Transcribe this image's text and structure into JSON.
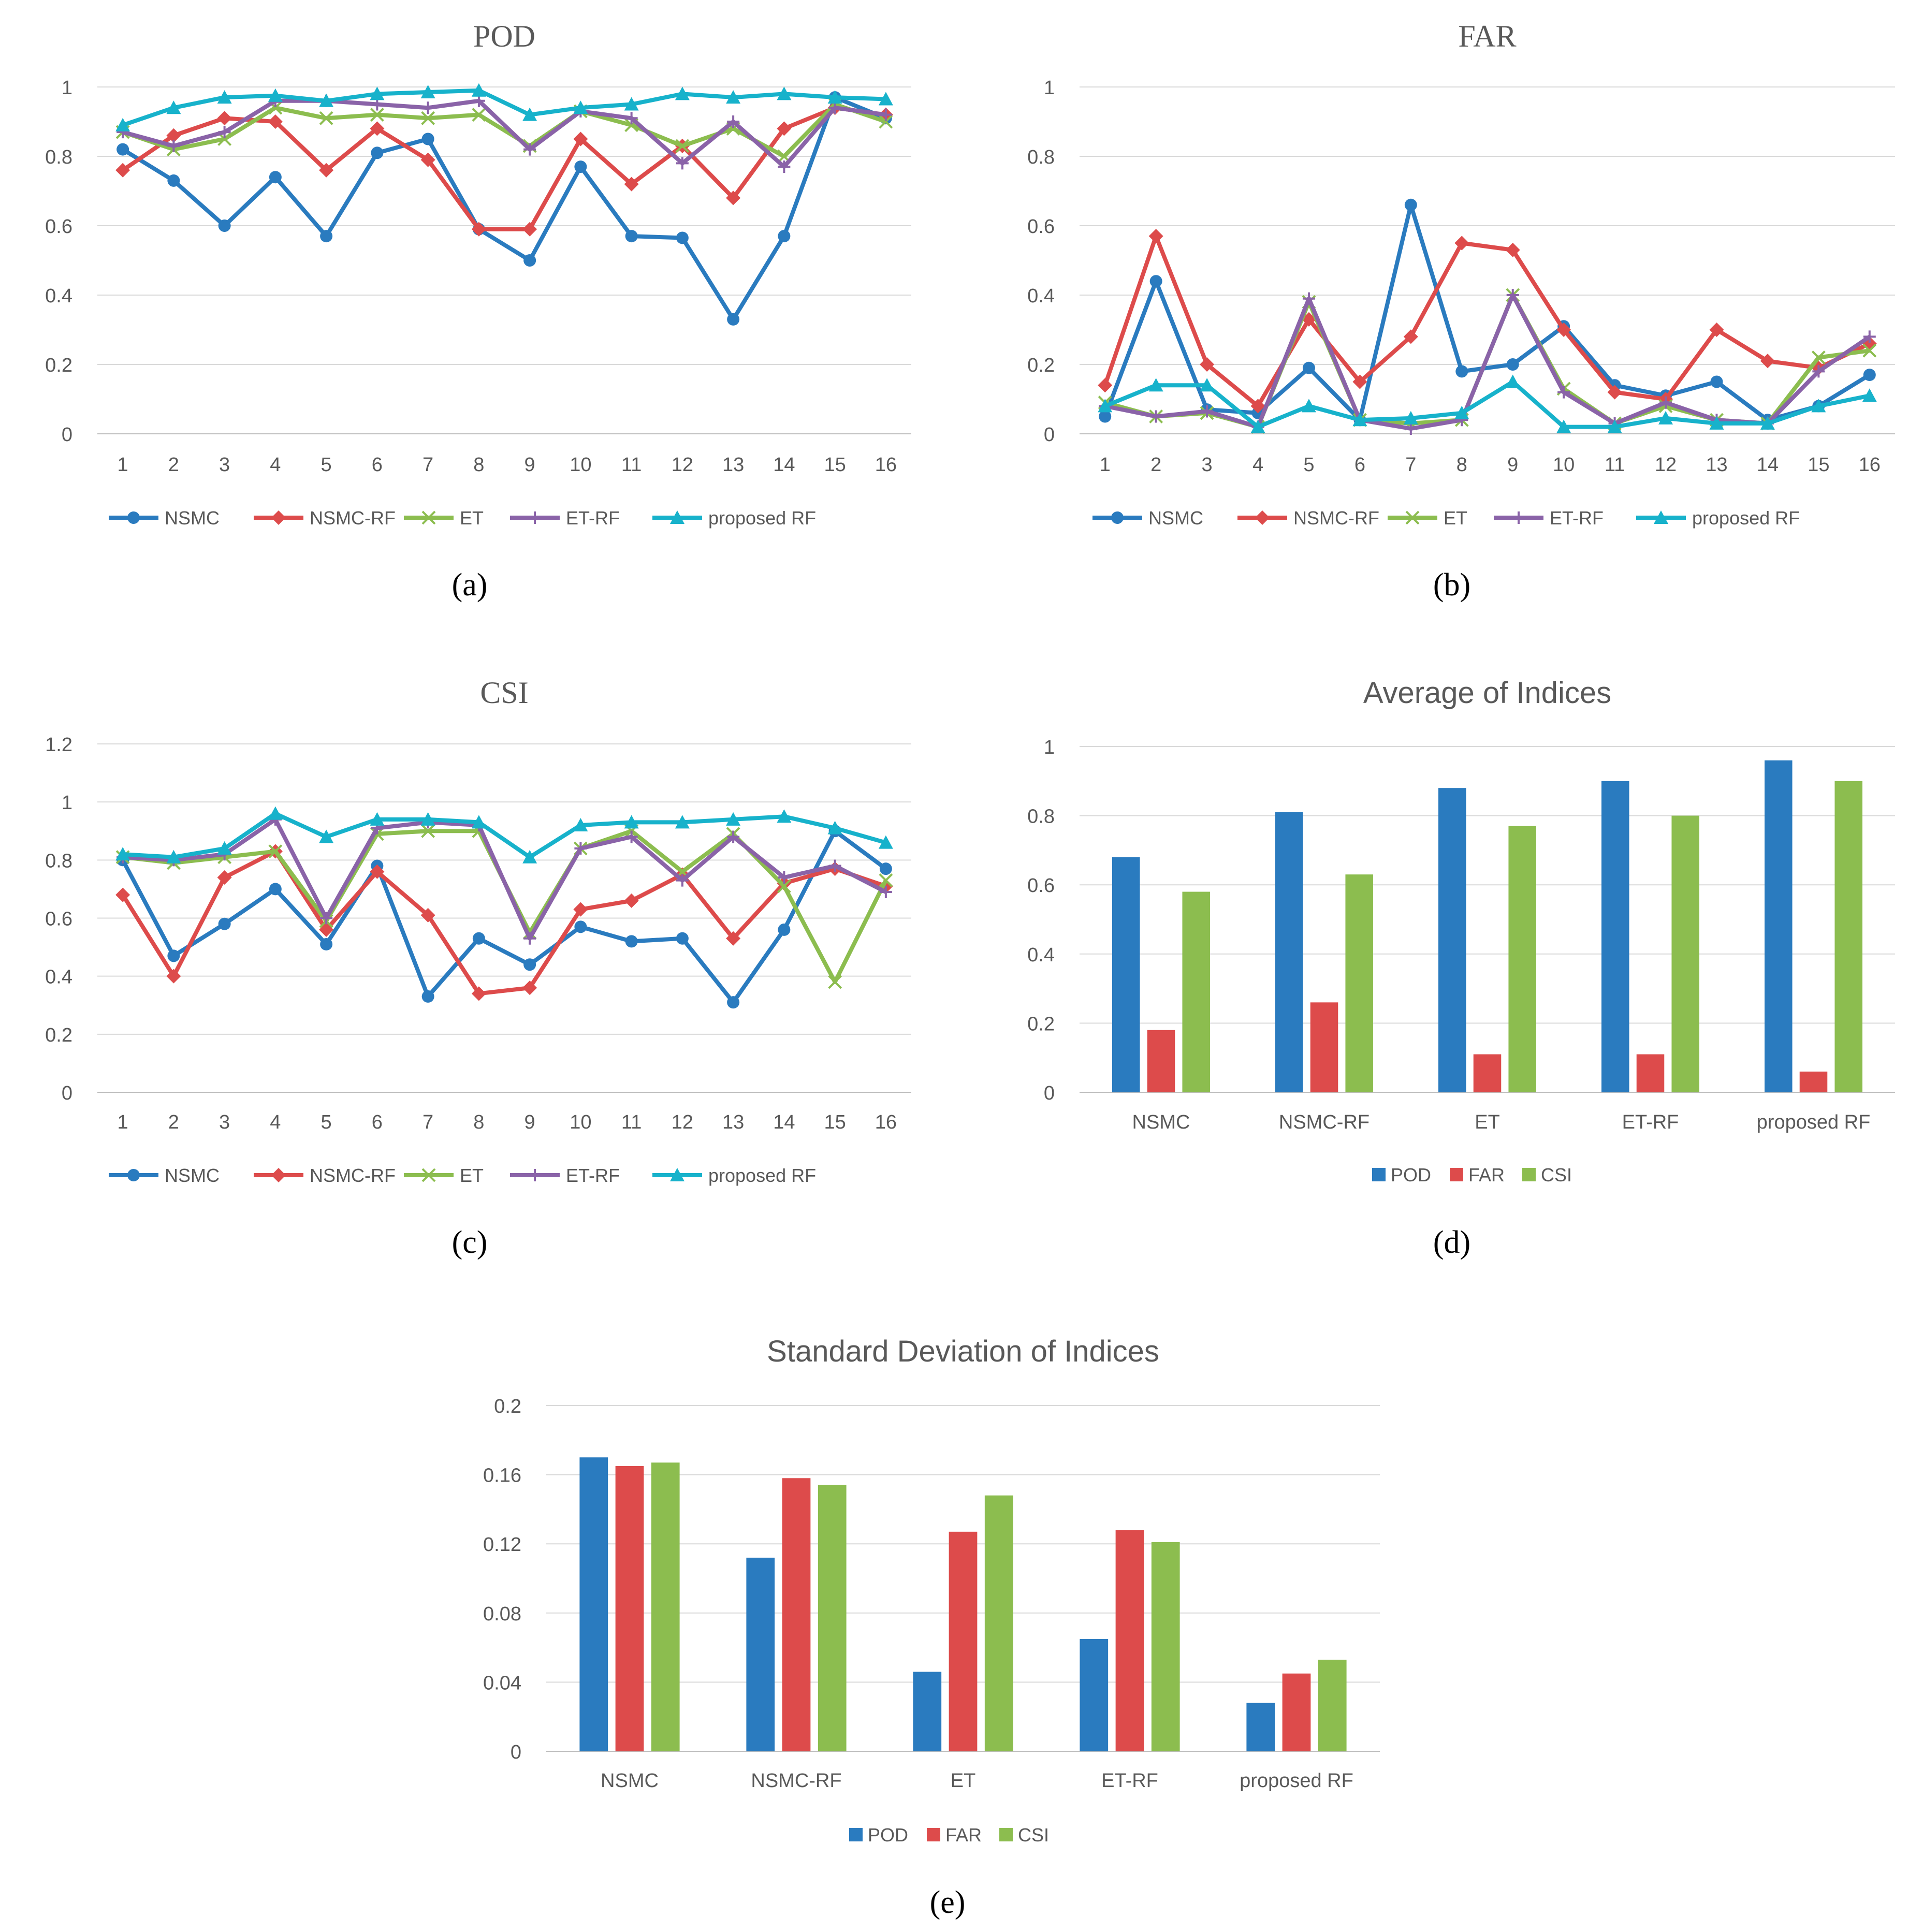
{
  "legend_line": [
    "NSMC",
    "NSMC-RF",
    "ET",
    "ET-RF",
    "proposed RF"
  ],
  "legend_bar": [
    "POD",
    "FAR",
    "CSI"
  ],
  "colors": {
    "NSMC": "#2a7bbf",
    "NSMC-RF": "#dd4b4b",
    "ET": "#8cbd4f",
    "ET-RF": "#8a63a8",
    "proposed RF": "#17b2cb",
    "POD": "#2a7bbf",
    "FAR": "#dd4b4b",
    "CSI": "#8cbd4f",
    "grid": "#d9d9d9",
    "axis_text": "#595959",
    "title_text": "#595959"
  },
  "chart_data": [
    {
      "id": "a",
      "panel_label": "(a)",
      "type": "line",
      "title": "POD",
      "categories": [
        "1",
        "2",
        "3",
        "4",
        "5",
        "6",
        "7",
        "8",
        "9",
        "10",
        "11",
        "12",
        "13",
        "14",
        "15",
        "16"
      ],
      "yticks": [
        "0",
        "0.2",
        "0.4",
        "0.6",
        "0.8",
        "1"
      ],
      "ylim": [
        0,
        1
      ],
      "series": [
        {
          "name": "NSMC",
          "values": [
            0.82,
            0.73,
            0.6,
            0.74,
            0.57,
            0.81,
            0.85,
            0.59,
            0.5,
            0.77,
            0.57,
            0.565,
            0.33,
            0.57,
            0.97,
            0.91
          ]
        },
        {
          "name": "NSMC-RF",
          "values": [
            0.76,
            0.86,
            0.91,
            0.9,
            0.76,
            0.88,
            0.79,
            0.59,
            0.59,
            0.85,
            0.72,
            0.83,
            0.68,
            0.88,
            0.94,
            0.92
          ]
        },
        {
          "name": "ET",
          "values": [
            0.87,
            0.82,
            0.85,
            0.94,
            0.91,
            0.92,
            0.91,
            0.92,
            0.83,
            0.93,
            0.89,
            0.83,
            0.88,
            0.8,
            0.95,
            0.9
          ]
        },
        {
          "name": "ET-RF",
          "values": [
            0.87,
            0.83,
            0.87,
            0.96,
            0.96,
            0.95,
            0.94,
            0.96,
            0.82,
            0.93,
            0.91,
            0.78,
            0.9,
            0.77,
            0.94,
            0.92
          ]
        },
        {
          "name": "proposed RF",
          "values": [
            0.89,
            0.94,
            0.97,
            0.975,
            0.96,
            0.98,
            0.985,
            0.99,
            0.92,
            0.94,
            0.95,
            0.98,
            0.97,
            0.98,
            0.97,
            0.965
          ]
        }
      ]
    },
    {
      "id": "b",
      "panel_label": "(b)",
      "type": "line",
      "title": "FAR",
      "categories": [
        "1",
        "2",
        "3",
        "4",
        "5",
        "6",
        "7",
        "8",
        "9",
        "10",
        "11",
        "12",
        "13",
        "14",
        "15",
        "16"
      ],
      "yticks": [
        "0",
        "0.2",
        "0.4",
        "0.6",
        "0.8",
        "1"
      ],
      "ylim": [
        0,
        1
      ],
      "series": [
        {
          "name": "NSMC",
          "values": [
            0.05,
            0.44,
            0.07,
            0.06,
            0.19,
            0.04,
            0.66,
            0.18,
            0.2,
            0.31,
            0.14,
            0.11,
            0.15,
            0.04,
            0.08,
            0.17
          ]
        },
        {
          "name": "NSMC-RF",
          "values": [
            0.14,
            0.57,
            0.2,
            0.08,
            0.33,
            0.15,
            0.28,
            0.55,
            0.53,
            0.3,
            0.12,
            0.1,
            0.3,
            0.21,
            0.19,
            0.26
          ]
        },
        {
          "name": "ET",
          "values": [
            0.09,
            0.05,
            0.06,
            0.02,
            0.38,
            0.04,
            0.03,
            0.04,
            0.4,
            0.13,
            0.03,
            0.08,
            0.04,
            0.03,
            0.22,
            0.24
          ]
        },
        {
          "name": "ET-RF",
          "values": [
            0.08,
            0.05,
            0.065,
            0.02,
            0.39,
            0.04,
            0.015,
            0.04,
            0.4,
            0.12,
            0.03,
            0.09,
            0.04,
            0.03,
            0.18,
            0.28
          ]
        },
        {
          "name": "proposed RF",
          "values": [
            0.08,
            0.14,
            0.14,
            0.02,
            0.08,
            0.04,
            0.045,
            0.06,
            0.15,
            0.02,
            0.02,
            0.045,
            0.03,
            0.03,
            0.08,
            0.11
          ]
        }
      ]
    },
    {
      "id": "c",
      "panel_label": "(c)",
      "type": "line",
      "title": "CSI",
      "categories": [
        "1",
        "2",
        "3",
        "4",
        "5",
        "6",
        "7",
        "8",
        "9",
        "10",
        "11",
        "12",
        "13",
        "14",
        "15",
        "16"
      ],
      "yticks": [
        "0",
        "0.2",
        "0.4",
        "0.6",
        "0.8",
        "1",
        "1.2"
      ],
      "ylim": [
        0,
        1.2
      ],
      "series": [
        {
          "name": "NSMC",
          "values": [
            0.8,
            0.47,
            0.58,
            0.7,
            0.51,
            0.78,
            0.33,
            0.53,
            0.44,
            0.57,
            0.52,
            0.53,
            0.31,
            0.56,
            0.9,
            0.77
          ]
        },
        {
          "name": "NSMC-RF",
          "values": [
            0.68,
            0.4,
            0.74,
            0.83,
            0.56,
            0.76,
            0.61,
            0.34,
            0.36,
            0.63,
            0.66,
            0.75,
            0.53,
            0.72,
            0.77,
            0.71
          ]
        },
        {
          "name": "ET",
          "values": [
            0.81,
            0.79,
            0.81,
            0.83,
            0.59,
            0.89,
            0.9,
            0.9,
            0.55,
            0.84,
            0.9,
            0.76,
            0.89,
            0.71,
            0.38,
            0.73
          ]
        },
        {
          "name": "ET-RF",
          "values": [
            0.81,
            0.8,
            0.82,
            0.94,
            0.6,
            0.91,
            0.93,
            0.92,
            0.53,
            0.84,
            0.88,
            0.73,
            0.88,
            0.74,
            0.78,
            0.69
          ]
        },
        {
          "name": "proposed RF",
          "values": [
            0.82,
            0.81,
            0.84,
            0.96,
            0.88,
            0.94,
            0.94,
            0.93,
            0.81,
            0.92,
            0.93,
            0.93,
            0.94,
            0.95,
            0.91,
            0.86
          ]
        }
      ]
    },
    {
      "id": "d",
      "panel_label": "(d)",
      "type": "bar",
      "title": "Average of Indices",
      "categories": [
        "NSMC",
        "NSMC-RF",
        "ET",
        "ET-RF",
        "proposed RF"
      ],
      "yticks": [
        "0",
        "0.2",
        "0.4",
        "0.6",
        "0.8",
        "1"
      ],
      "ylim": [
        0,
        1
      ],
      "series": [
        {
          "name": "POD",
          "values": [
            0.68,
            0.81,
            0.88,
            0.9,
            0.96
          ]
        },
        {
          "name": "FAR",
          "values": [
            0.18,
            0.26,
            0.11,
            0.11,
            0.06
          ]
        },
        {
          "name": "CSI",
          "values": [
            0.58,
            0.63,
            0.77,
            0.8,
            0.9
          ]
        }
      ]
    },
    {
      "id": "e",
      "panel_label": "(e)",
      "type": "bar",
      "title": "Standard Deviation of Indices",
      "categories": [
        "NSMC",
        "NSMC-RF",
        "ET",
        "ET-RF",
        "proposed RF"
      ],
      "yticks": [
        "0",
        "0.04",
        "0.08",
        "0.12",
        "0.16",
        "0.2"
      ],
      "ylim": [
        0,
        0.2
      ],
      "series": [
        {
          "name": "POD",
          "values": [
            0.17,
            0.112,
            0.046,
            0.065,
            0.028
          ]
        },
        {
          "name": "FAR",
          "values": [
            0.165,
            0.158,
            0.127,
            0.128,
            0.045
          ]
        },
        {
          "name": "CSI",
          "values": [
            0.167,
            0.154,
            0.148,
            0.121,
            0.053
          ]
        }
      ]
    }
  ]
}
